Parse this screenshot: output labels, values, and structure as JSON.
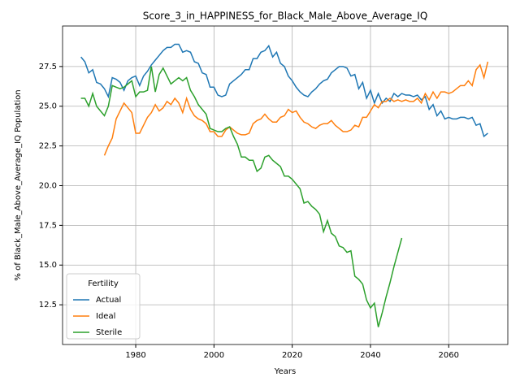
{
  "chart_data": {
    "type": "line",
    "title": "Score_3_in_HAPPINESS_for_Black_Male_Above_Average_IQ",
    "xlabel": "Years",
    "ylabel": "% of Black_Male_Above_Average_IQ Population",
    "legend_title": "Fertility",
    "legend_position": "lower left",
    "grid": true,
    "xlim": [
      1961.3,
      2075.1
    ],
    "ylim": [
      10.0,
      30.05
    ],
    "xticks": [
      1980,
      2000,
      2020,
      2040,
      2060
    ],
    "yticks": [
      12.5,
      {
        "value": 15,
        "label": "15.0"
      },
      17.5,
      {
        "value": 20,
        "label": "20.0"
      },
      22.5,
      {
        "value": 25,
        "label": "25.0"
      },
      27.5
    ],
    "x": [
      1966,
      1967,
      1968,
      1969,
      1970,
      1971,
      1972,
      1973,
      1974,
      1975,
      1976,
      1977,
      1978,
      1979,
      1980,
      1981,
      1982,
      1983,
      1984,
      1985,
      1986,
      1987,
      1988,
      1989,
      1990,
      1991,
      1992,
      1993,
      1994,
      1995,
      1996,
      1997,
      1998,
      1999,
      2000,
      2001,
      2002,
      2003,
      2004,
      2005,
      2006,
      2007,
      2008,
      2009,
      2010,
      2011,
      2012,
      2013,
      2014,
      2015,
      2016,
      2017,
      2018,
      2019,
      2020,
      2021,
      2022,
      2023,
      2024,
      2025,
      2026,
      2027,
      2028,
      2029,
      2030,
      2031,
      2032,
      2033,
      2034,
      2035,
      2036,
      2037,
      2038,
      2039,
      2040,
      2041,
      2042,
      2043,
      2044,
      2045,
      2046,
      2047,
      2048,
      2049,
      2050,
      2051,
      2052,
      2053,
      2054,
      2055,
      2056,
      2057,
      2058,
      2059,
      2060,
      2061,
      2062,
      2063,
      2064,
      2065,
      2066,
      2067,
      2068,
      2069,
      2070
    ],
    "series": [
      {
        "name": "Actual",
        "color": "#1f77b4",
        "values": [
          28.1,
          27.8,
          27.1,
          27.3,
          26.5,
          26.4,
          26.1,
          25.6,
          26.8,
          26.7,
          26.5,
          26.0,
          26.6,
          26.8,
          26.9,
          26.3,
          26.9,
          27.2,
          27.6,
          27.9,
          28.2,
          28.5,
          28.7,
          28.7,
          28.9,
          28.9,
          28.4,
          28.5,
          28.4,
          27.8,
          27.7,
          27.1,
          27.0,
          26.2,
          26.2,
          25.7,
          25.6,
          25.7,
          26.4,
          26.6,
          26.8,
          27.0,
          27.3,
          27.3,
          28.0,
          28.0,
          28.4,
          28.5,
          28.8,
          28.1,
          28.4,
          27.7,
          27.5,
          26.9,
          26.6,
          26.2,
          25.9,
          25.7,
          25.6,
          25.9,
          26.1,
          26.4,
          26.6,
          26.7,
          27.1,
          27.3,
          27.5,
          27.5,
          27.4,
          26.9,
          27.0,
          26.1,
          26.5,
          25.5,
          26.0,
          25.2,
          25.8,
          25.2,
          25.5,
          25.3,
          25.8,
          25.6,
          25.8,
          25.7,
          25.7,
          25.6,
          25.7,
          25.4,
          25.6,
          24.8,
          25.1,
          24.4,
          24.7,
          24.2,
          24.3,
          24.2,
          24.2,
          24.3,
          24.3,
          24.2,
          24.3,
          23.8,
          23.9,
          23.1,
          23.3
        ]
      },
      {
        "name": "Ideal",
        "color": "#ff7f0e",
        "values": [
          null,
          null,
          null,
          null,
          null,
          null,
          21.9,
          22.5,
          23.0,
          24.2,
          24.7,
          25.2,
          24.9,
          24.6,
          23.3,
          23.3,
          23.8,
          24.3,
          24.6,
          25.1,
          24.7,
          24.9,
          25.3,
          25.1,
          25.5,
          25.2,
          24.6,
          25.5,
          24.8,
          24.4,
          24.2,
          24.1,
          23.9,
          23.4,
          23.4,
          23.1,
          23.1,
          23.5,
          23.7,
          23.5,
          23.3,
          23.2,
          23.2,
          23.3,
          23.9,
          24.1,
          24.2,
          24.5,
          24.2,
          24.0,
          24.0,
          24.3,
          24.4,
          24.8,
          24.6,
          24.7,
          24.3,
          24.0,
          23.9,
          23.7,
          23.6,
          23.8,
          23.9,
          23.9,
          24.1,
          23.8,
          23.6,
          23.4,
          23.4,
          23.5,
          23.8,
          23.7,
          24.3,
          24.3,
          24.7,
          25.1,
          24.9,
          25.3,
          25.3,
          25.5,
          25.3,
          25.4,
          25.3,
          25.4,
          25.3,
          25.3,
          25.5,
          25.2,
          25.8,
          25.4,
          25.9,
          25.5,
          25.9,
          25.9,
          25.8,
          25.9,
          26.1,
          26.3,
          26.3,
          26.6,
          26.3,
          27.3,
          27.6,
          26.8,
          27.8
        ]
      },
      {
        "name": "Sterile",
        "color": "#2ca02c",
        "values": [
          25.5,
          25.5,
          25.0,
          25.8,
          25.0,
          24.7,
          24.4,
          25.0,
          26.3,
          26.2,
          26.1,
          26.2,
          26.4,
          26.6,
          25.6,
          25.9,
          25.9,
          26.0,
          27.5,
          25.9,
          27.0,
          27.4,
          26.9,
          26.4,
          26.6,
          26.8,
          26.6,
          26.8,
          26.0,
          25.6,
          25.1,
          24.8,
          24.5,
          23.6,
          23.5,
          23.4,
          23.4,
          23.6,
          23.7,
          23.1,
          22.6,
          21.8,
          21.8,
          21.6,
          21.6,
          20.9,
          21.1,
          21.8,
          21.9,
          21.6,
          21.4,
          21.2,
          20.6,
          20.6,
          20.4,
          20.1,
          19.8,
          18.9,
          19.0,
          18.7,
          18.5,
          18.2,
          17.1,
          17.8,
          17.0,
          16.8,
          16.2,
          16.1,
          15.8,
          15.9,
          14.3,
          14.1,
          13.8,
          12.8,
          12.3,
          12.6,
          11.1,
          12.0,
          13.0,
          13.9,
          14.9,
          15.8,
          16.7,
          null,
          null,
          null,
          null,
          null,
          null,
          null,
          null,
          null,
          null,
          null,
          null,
          null,
          null,
          null,
          null,
          null,
          null,
          null,
          null,
          null,
          null
        ]
      }
    ]
  }
}
